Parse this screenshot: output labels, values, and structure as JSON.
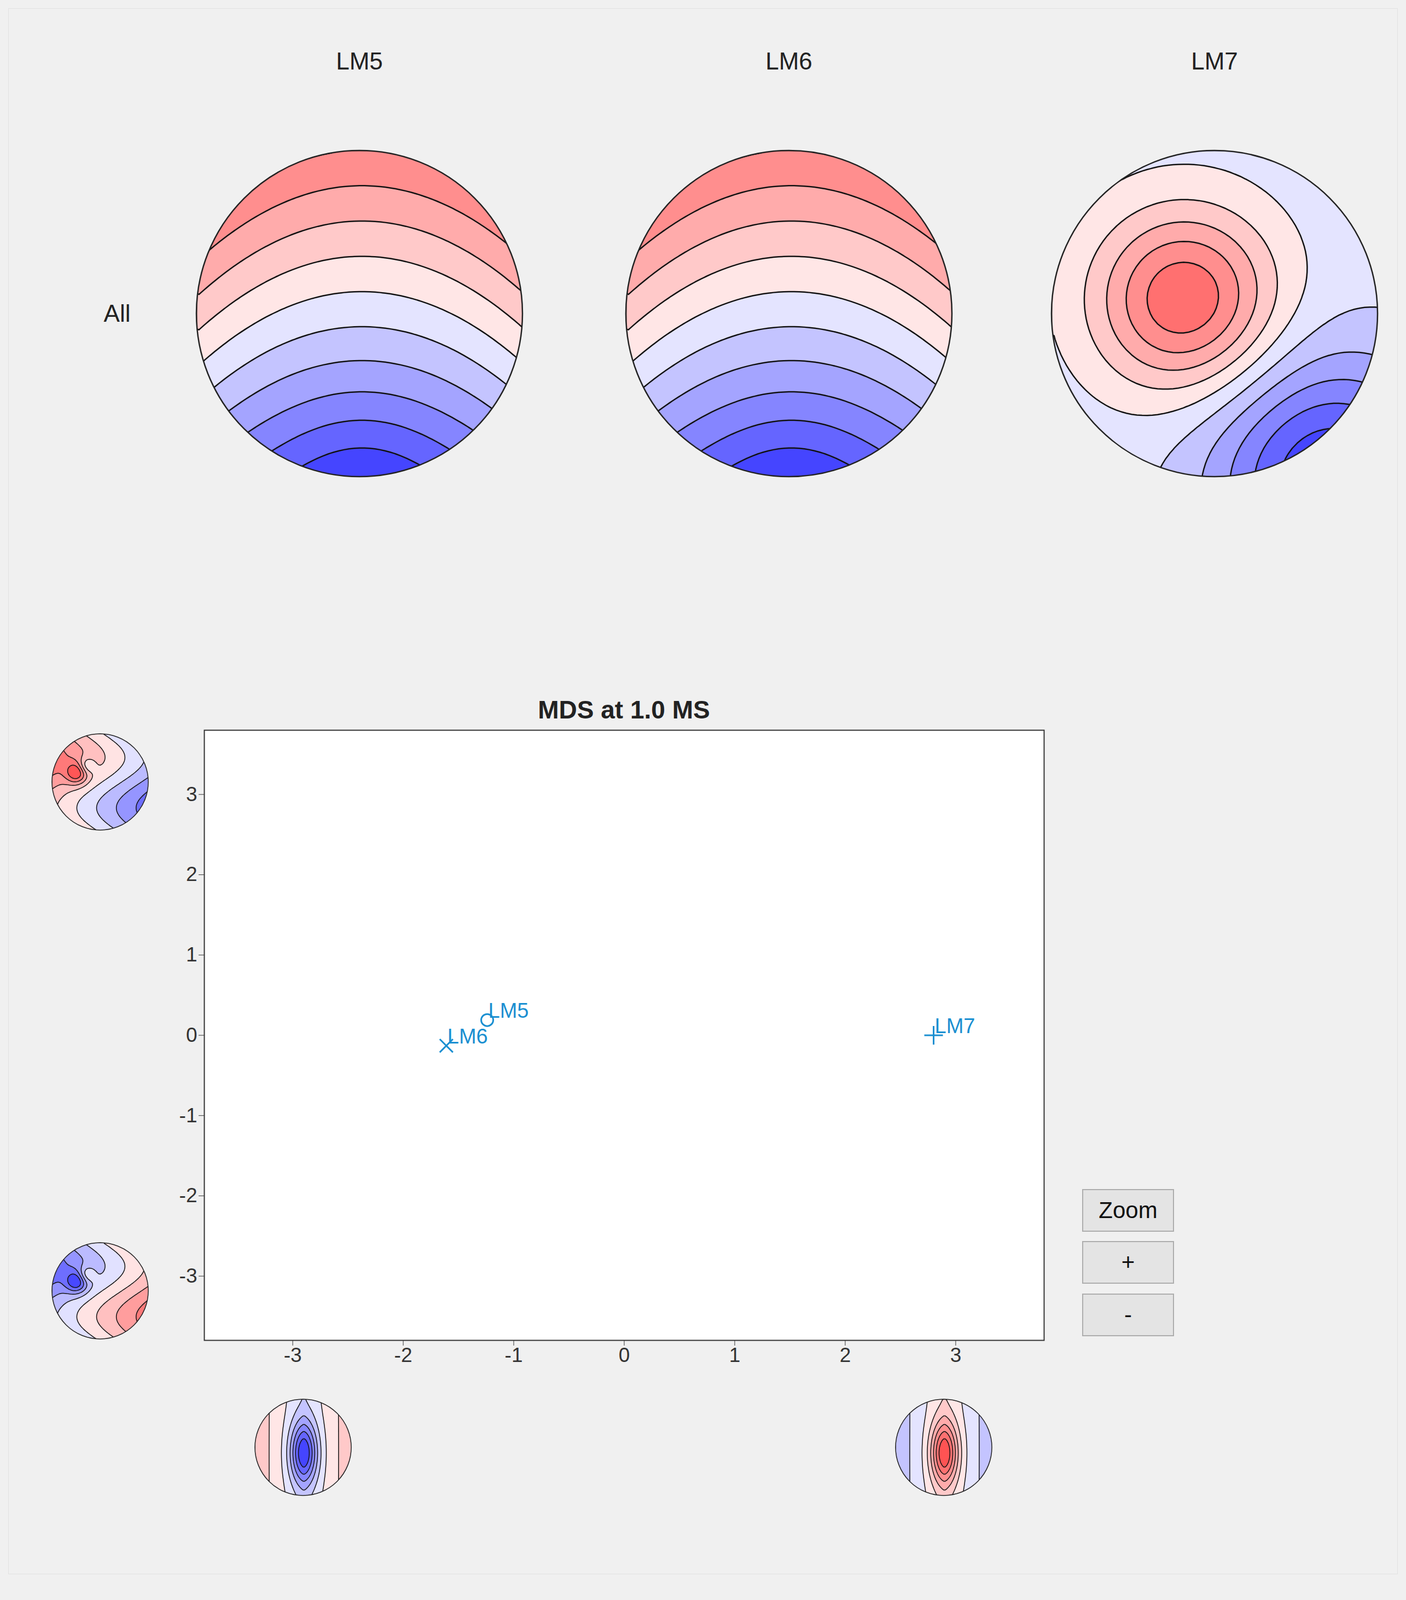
{
  "topomaps": {
    "row_label": "All",
    "titles": [
      "LM5",
      "LM6",
      "LM7"
    ]
  },
  "chart_data": {
    "type": "scatter",
    "title": "MDS at 1.0 MS",
    "xlim": [
      -3.8,
      3.8
    ],
    "ylim": [
      -3.8,
      3.8
    ],
    "xticks": [
      -3,
      -2,
      -1,
      0,
      1,
      2,
      3
    ],
    "yticks": [
      -3,
      -2,
      -1,
      0,
      1,
      2,
      3
    ],
    "grid": false,
    "color": "#1a8fd1",
    "points": [
      {
        "label": "LM5",
        "x": -1.24,
        "y": 0.19,
        "marker": "circle"
      },
      {
        "label": "LM6",
        "x": -1.61,
        "y": -0.13,
        "marker": "times"
      },
      {
        "label": "LM7",
        "x": 2.8,
        "y": 0.0,
        "marker": "plus"
      }
    ]
  },
  "buttons": [
    "Zoom",
    "+",
    "-"
  ]
}
